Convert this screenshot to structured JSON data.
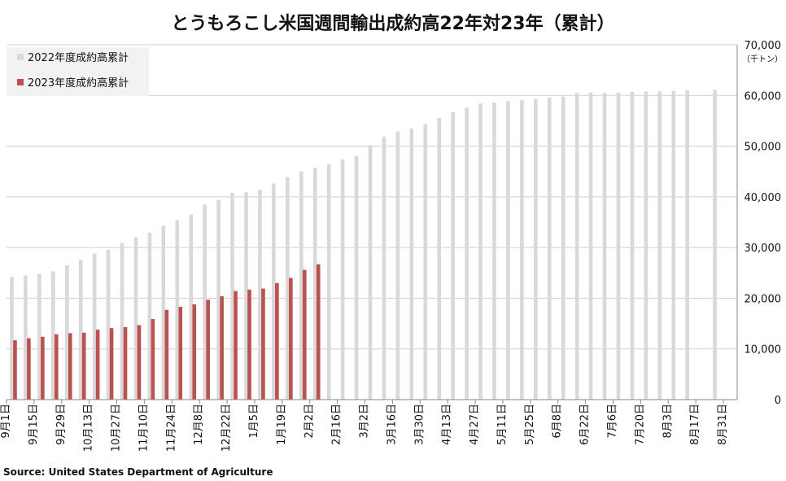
{
  "chart_data": {
    "type": "bar",
    "title": "とうもろこし米国週間輸出成約高22年対23年（累計）",
    "unit_label": "（千トン）",
    "source": "Source: United States Department of Agriculture",
    "ylim": [
      0,
      70000
    ],
    "yticks": [
      0,
      10000,
      20000,
      30000,
      40000,
      50000,
      60000,
      70000
    ],
    "ytick_labels": [
      "0",
      "10,000",
      "20,000",
      "30,000",
      "40,000",
      "50,000",
      "60,000",
      "70,000"
    ],
    "grid": true,
    "legend_position": "top-left",
    "x_labels": [
      "9月1日",
      "9月15日",
      "9月29日",
      "10月13日",
      "10月27日",
      "11月10日",
      "11月24日",
      "12月8日",
      "12月22日",
      "1月5日",
      "1月19日",
      "2月2日",
      "2月16日",
      "3月2日",
      "3月16日",
      "3月30日",
      "4月13日",
      "4月27日",
      "5月11日",
      "5月25日",
      "6月8日",
      "6月22日",
      "7月6日",
      "7月20日",
      "8月3日",
      "8月17日",
      "8月31日"
    ],
    "series": [
      {
        "name": "2022年度成約高累計",
        "color": "#d9d9d9",
        "values": [
          24200,
          24500,
          24800,
          25300,
          26500,
          27600,
          28800,
          29600,
          30900,
          32000,
          32900,
          34300,
          35400,
          36500,
          38500,
          39400,
          40800,
          40900,
          41400,
          42600,
          43900,
          45000,
          45700,
          46400,
          47400,
          48100,
          50200,
          51900,
          52900,
          53500,
          54300,
          55600,
          56700,
          57600,
          58400,
          58600,
          58900,
          59100,
          59300,
          59600,
          59800,
          60500,
          60600,
          60500,
          60600,
          60700,
          60800,
          60800,
          60900,
          61000,
          null,
          61100,
          null
        ]
      },
      {
        "name": "2023年度成約高累計",
        "color": "#c0504d",
        "values": [
          11700,
          12100,
          12400,
          12900,
          13100,
          13200,
          13800,
          14100,
          14300,
          14700,
          15900,
          17700,
          18300,
          18800,
          19700,
          20400,
          21400,
          21700,
          21900,
          23000,
          24000,
          25600,
          26700,
          null,
          null,
          null,
          null,
          null,
          null,
          null,
          null,
          null,
          null,
          null,
          null,
          null,
          null,
          null,
          null,
          null,
          null,
          null,
          null,
          null,
          null,
          null,
          null,
          null,
          null,
          null,
          null,
          null,
          null
        ]
      }
    ]
  }
}
